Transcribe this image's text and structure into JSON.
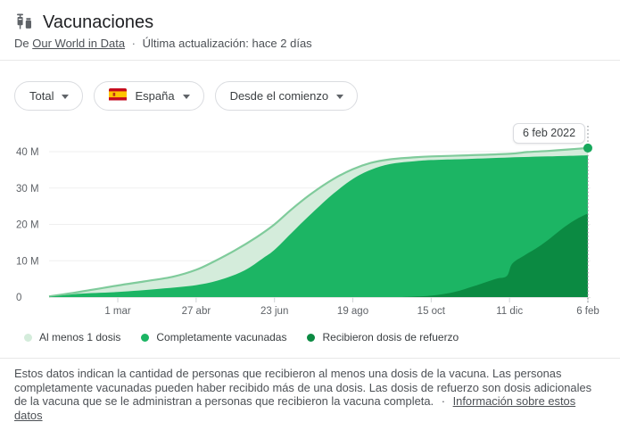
{
  "header": {
    "title": "Vacunaciones",
    "source_prefix": "De",
    "source_link": "Our World in Data",
    "separator": "·",
    "last_updated": "Última actualización: hace 2 días"
  },
  "filters": {
    "metric": {
      "label": "Total"
    },
    "region": {
      "label": "España",
      "flag": "spain-flag"
    },
    "range": {
      "label": "Desde el comienzo"
    }
  },
  "colors": {
    "light_fill": "#d4ecdb",
    "light_stroke": "#7fcb9b",
    "medium_fill": "#1cb564",
    "dark_fill": "#0b8a42",
    "marker_dot": "#17a85c",
    "grid_line": "#efefef",
    "baseline": "#e4e4e4",
    "tick": "#d0d3d6",
    "dotted_line": "#8a8f94",
    "axis_text": "#5f6368"
  },
  "chart_data": {
    "type": "area",
    "grid": true,
    "legend_position": "bottom",
    "y_axis": {
      "unit": "millions of people",
      "tick_values_millions": [
        0,
        10,
        20,
        30,
        40
      ],
      "tick_labels": [
        "0",
        "10 M",
        "20 M",
        "30 M",
        "40 M"
      ],
      "max_millions": 44
    },
    "x_axis": {
      "start_date": "2021-01-10",
      "end_date": "2022-02-06",
      "ticks": [
        {
          "label": "1 mar",
          "date": "2021-03-01"
        },
        {
          "label": "27 abr",
          "date": "2021-04-27"
        },
        {
          "label": "23 jun",
          "date": "2021-06-23"
        },
        {
          "label": "19 ago",
          "date": "2021-08-19"
        },
        {
          "label": "15 oct",
          "date": "2021-10-15"
        },
        {
          "label": "11 dic",
          "date": "2021-12-11"
        },
        {
          "label": "6 feb",
          "date": "2022-02-06"
        }
      ]
    },
    "series": [
      {
        "name": "Al menos 1 dosis",
        "color_key": "light_fill",
        "stroke_key": "light_stroke",
        "points": [
          [
            "2021-01-10",
            0.2
          ],
          [
            "2021-01-25",
            1.0
          ],
          [
            "2021-02-10",
            2.0
          ],
          [
            "2021-03-01",
            3.2
          ],
          [
            "2021-03-20",
            4.3
          ],
          [
            "2021-04-10",
            5.6
          ],
          [
            "2021-04-27",
            7.5
          ],
          [
            "2021-05-10",
            9.8
          ],
          [
            "2021-05-25",
            12.8
          ],
          [
            "2021-06-10",
            16.5
          ],
          [
            "2021-06-23",
            20.0
          ],
          [
            "2021-07-05",
            24.0
          ],
          [
            "2021-07-20",
            28.5
          ],
          [
            "2021-08-05",
            32.5
          ],
          [
            "2021-08-19",
            35.2
          ],
          [
            "2021-09-01",
            36.9
          ],
          [
            "2021-09-15",
            37.9
          ],
          [
            "2021-10-01",
            38.4
          ],
          [
            "2021-10-15",
            38.7
          ],
          [
            "2021-11-10",
            39.0
          ],
          [
            "2021-12-11",
            39.4
          ],
          [
            "2021-12-24",
            39.9
          ],
          [
            "2022-01-08",
            40.2
          ],
          [
            "2022-01-22",
            40.6
          ],
          [
            "2022-02-06",
            41.0
          ]
        ]
      },
      {
        "name": "Completamente vacunadas",
        "color_key": "medium_fill",
        "stroke_key": null,
        "points": [
          [
            "2021-01-10",
            0.05
          ],
          [
            "2021-02-01",
            0.9
          ],
          [
            "2021-03-01",
            1.4
          ],
          [
            "2021-04-01",
            2.3
          ],
          [
            "2021-04-27",
            3.3
          ],
          [
            "2021-05-15",
            4.8
          ],
          [
            "2021-06-01",
            7.3
          ],
          [
            "2021-06-15",
            10.8
          ],
          [
            "2021-06-23",
            13.0
          ],
          [
            "2021-07-05",
            17.5
          ],
          [
            "2021-07-20",
            23.0
          ],
          [
            "2021-08-05",
            28.5
          ],
          [
            "2021-08-19",
            32.5
          ],
          [
            "2021-09-01",
            35.0
          ],
          [
            "2021-09-15",
            36.6
          ],
          [
            "2021-10-01",
            37.3
          ],
          [
            "2021-10-15",
            37.7
          ],
          [
            "2021-11-10",
            38.0
          ],
          [
            "2021-12-11",
            38.4
          ],
          [
            "2022-01-08",
            38.7
          ],
          [
            "2022-02-06",
            39.0
          ]
        ]
      },
      {
        "name": "Recibieron dosis de refuerzo",
        "color_key": "dark_fill",
        "stroke_key": null,
        "points": [
          [
            "2021-09-24",
            0.0
          ],
          [
            "2021-10-15",
            0.4
          ],
          [
            "2021-11-01",
            1.4
          ],
          [
            "2021-11-15",
            3.0
          ],
          [
            "2021-12-01",
            5.0
          ],
          [
            "2021-12-09",
            5.8
          ],
          [
            "2021-12-13",
            9.2
          ],
          [
            "2021-12-22",
            11.5
          ],
          [
            "2022-01-01",
            13.8
          ],
          [
            "2022-01-10",
            16.3
          ],
          [
            "2022-01-20",
            19.3
          ],
          [
            "2022-01-29",
            21.5
          ],
          [
            "2022-02-06",
            23.0
          ]
        ]
      }
    ],
    "end_marker": {
      "series": "Al menos 1 dosis",
      "date": "2022-02-06",
      "value_millions": 41.0,
      "label": "6 feb 2022"
    }
  },
  "legend": [
    {
      "label": "Al menos 1 dosis",
      "color_key": "light_fill"
    },
    {
      "label": "Completamente vacunadas",
      "color_key": "medium_fill"
    },
    {
      "label": "Recibieron dosis de refuerzo",
      "color_key": "dark_fill"
    }
  ],
  "footer": {
    "description": "Estos datos indican la cantidad de personas que recibieron al menos una dosis de la vacuna. Las personas completamente vacunadas pueden haber recibido más de una dosis. Las dosis de refuerzo son dosis adicionales de la vacuna que se le administran a personas que recibieron la vacuna completa.",
    "separator": "·",
    "link": "Información sobre estos datos"
  }
}
